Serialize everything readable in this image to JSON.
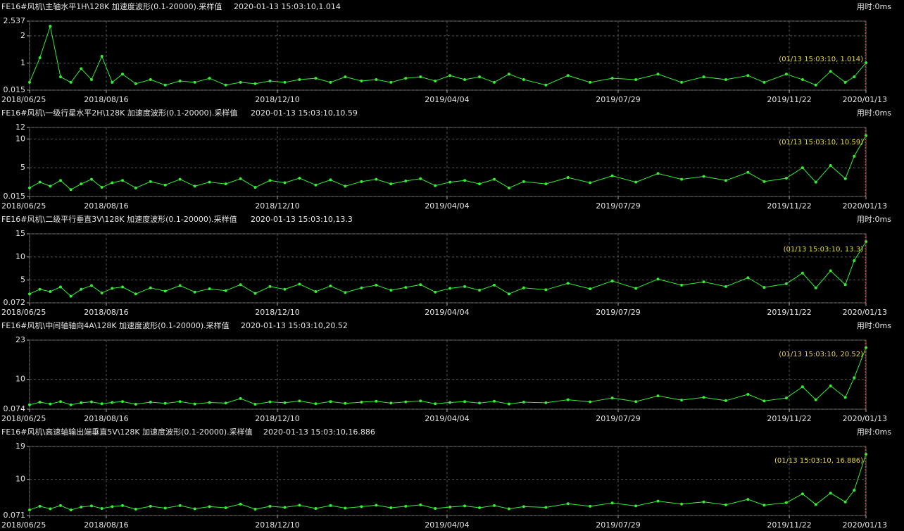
{
  "chart_data": [
    {
      "type": "line",
      "title": "FE16#风机\\主轴水平1H\\128K 加速度波形(0.1-20000).采样值",
      "subtitle": "2020-01-13 15:03:10,1.014",
      "elapsed": "用时:0ms",
      "annotation": "(01/13 15:03:10, 1.014)",
      "x": [
        "2018/06/25",
        "2018/07/02",
        "2018/07/09",
        "2018/07/16",
        "2018/07/23",
        "2018/07/30",
        "2018/08/06",
        "2018/08/13",
        "2018/08/20",
        "2018/08/27",
        "2018/09/05",
        "2018/09/15",
        "2018/09/25",
        "2018/10/05",
        "2018/10/15",
        "2018/10/25",
        "2018/11/05",
        "2018/11/15",
        "2018/11/25",
        "2018/12/05",
        "2018/12/15",
        "2018/12/25",
        "2019/01/05",
        "2019/01/15",
        "2019/01/25",
        "2019/02/05",
        "2019/02/15",
        "2019/02/25",
        "2019/03/07",
        "2019/03/17",
        "2019/03/27",
        "2019/04/06",
        "2019/04/16",
        "2019/04/26",
        "2019/05/06",
        "2019/05/16",
        "2019/05/26",
        "2019/06/10",
        "2019/06/25",
        "2019/07/10",
        "2019/07/25",
        "2019/08/10",
        "2019/08/25",
        "2019/09/10",
        "2019/09/25",
        "2019/10/10",
        "2019/10/25",
        "2019/11/05",
        "2019/11/20",
        "2019/12/01",
        "2019/12/10",
        "2019/12/20",
        "2019/12/30",
        "2020/01/05",
        "2020/01/13"
      ],
      "values": [
        0.3,
        1.2,
        2.35,
        0.5,
        0.3,
        0.8,
        0.4,
        1.25,
        0.3,
        0.6,
        0.25,
        0.4,
        0.2,
        0.35,
        0.3,
        0.45,
        0.2,
        0.3,
        0.25,
        0.35,
        0.3,
        0.4,
        0.45,
        0.3,
        0.5,
        0.35,
        0.4,
        0.3,
        0.45,
        0.5,
        0.35,
        0.55,
        0.4,
        0.5,
        0.3,
        0.6,
        0.4,
        0.2,
        0.55,
        0.3,
        0.45,
        0.4,
        0.6,
        0.3,
        0.5,
        0.4,
        0.55,
        0.3,
        0.6,
        0.4,
        0.2,
        0.7,
        0.3,
        0.5,
        1.014
      ],
      "color": "#33ee33",
      "xlim": [
        "2018/06/25",
        "2020/01/13"
      ],
      "xticks": [
        "2018/06/25",
        "2018/08/16",
        "2018/12/10",
        "2019/04/04",
        "2019/07/29",
        "2019/11/22",
        "2020/01/13"
      ],
      "ylim": [
        0.015,
        2.537
      ],
      "yticks": [
        0.015,
        1,
        2,
        2.537
      ],
      "grid": true
    },
    {
      "type": "line",
      "title": "FE16#风机\\一级行星水平2H\\128K 加速度波形(0.1-20000).采样值",
      "subtitle": "2020-01-13 15:03:10,10.59",
      "elapsed": "用时:0ms",
      "annotation": "(01/13 15:03:10, 10.59)",
      "x": [
        "2018/06/25",
        "2018/07/02",
        "2018/07/09",
        "2018/07/16",
        "2018/07/23",
        "2018/07/30",
        "2018/08/06",
        "2018/08/13",
        "2018/08/20",
        "2018/08/27",
        "2018/09/05",
        "2018/09/15",
        "2018/09/25",
        "2018/10/05",
        "2018/10/15",
        "2018/10/25",
        "2018/11/05",
        "2018/11/15",
        "2018/11/25",
        "2018/12/05",
        "2018/12/15",
        "2018/12/25",
        "2019/01/05",
        "2019/01/15",
        "2019/01/25",
        "2019/02/05",
        "2019/02/15",
        "2019/02/25",
        "2019/03/07",
        "2019/03/17",
        "2019/03/27",
        "2019/04/06",
        "2019/04/16",
        "2019/04/26",
        "2019/05/06",
        "2019/05/16",
        "2019/05/26",
        "2019/06/10",
        "2019/06/25",
        "2019/07/10",
        "2019/07/25",
        "2019/08/10",
        "2019/08/25",
        "2019/09/10",
        "2019/09/25",
        "2019/10/10",
        "2019/10/25",
        "2019/11/05",
        "2019/11/20",
        "2019/12/01",
        "2019/12/10",
        "2019/12/20",
        "2019/12/30",
        "2020/01/05",
        "2020/01/13"
      ],
      "values": [
        1.5,
        2.5,
        1.8,
        2.8,
        1.2,
        2.2,
        3,
        1.6,
        2.4,
        2.8,
        1.5,
        2.6,
        2,
        3,
        1.8,
        2.5,
        2.2,
        3.1,
        1.6,
        2.8,
        2.4,
        3.2,
        2,
        2.9,
        1.8,
        2.6,
        3,
        2.2,
        2.7,
        3.1,
        1.9,
        2.5,
        2.8,
        2.2,
        3,
        1.5,
        2.6,
        2.2,
        3.3,
        2.4,
        3.6,
        2.5,
        4,
        3,
        3.5,
        2.8,
        4.2,
        2.6,
        3.2,
        5,
        2.5,
        5.4,
        3.1,
        7,
        10.59
      ],
      "color": "#33ee33",
      "xlim": [
        "2018/06/25",
        "2020/01/13"
      ],
      "xticks": [
        "2018/06/25",
        "2018/08/16",
        "2018/12/10",
        "2019/04/04",
        "2019/07/29",
        "2019/11/22",
        "2020/01/13"
      ],
      "ylim": [
        0.015,
        12
      ],
      "yticks": [
        0.015,
        5,
        10,
        12
      ],
      "grid": true
    },
    {
      "type": "line",
      "title": "FE16#风机\\二级平行垂直3V\\128K 加速度波形(0.1-20000).采样值",
      "subtitle": "2020-01-13 15:03:10,13.3",
      "elapsed": "用时:0ms",
      "annotation": "(01/13 15:03:10, 13.3)",
      "x": [
        "2018/06/25",
        "2018/07/02",
        "2018/07/09",
        "2018/07/16",
        "2018/07/23",
        "2018/07/30",
        "2018/08/06",
        "2018/08/13",
        "2018/08/20",
        "2018/08/27",
        "2018/09/05",
        "2018/09/15",
        "2018/09/25",
        "2018/10/05",
        "2018/10/15",
        "2018/10/25",
        "2018/11/05",
        "2018/11/15",
        "2018/11/25",
        "2018/12/05",
        "2018/12/15",
        "2018/12/25",
        "2019/01/05",
        "2019/01/15",
        "2019/01/25",
        "2019/02/05",
        "2019/02/15",
        "2019/02/25",
        "2019/03/07",
        "2019/03/17",
        "2019/03/27",
        "2019/04/06",
        "2019/04/16",
        "2019/04/26",
        "2019/05/06",
        "2019/05/16",
        "2019/05/26",
        "2019/06/10",
        "2019/06/25",
        "2019/07/10",
        "2019/07/25",
        "2019/08/10",
        "2019/08/25",
        "2019/09/10",
        "2019/09/25",
        "2019/10/10",
        "2019/10/25",
        "2019/11/05",
        "2019/11/20",
        "2019/12/01",
        "2019/12/10",
        "2019/12/20",
        "2019/12/30",
        "2020/01/05",
        "2020/01/13"
      ],
      "values": [
        2,
        3,
        2.5,
        3.5,
        1.5,
        3,
        3.8,
        2.2,
        3.2,
        3.5,
        2,
        3.3,
        2.6,
        3.8,
        2.4,
        3.1,
        2.7,
        4,
        2.1,
        3.6,
        3,
        4.1,
        2.5,
        3.7,
        2.3,
        3.3,
        3.9,
        2.8,
        3.4,
        4,
        2.4,
        3.2,
        3.6,
        2.8,
        3.9,
        2,
        3.3,
        2.9,
        4.3,
        3.1,
        4.8,
        3.2,
        5.2,
        3.9,
        4.6,
        3.6,
        5.5,
        3.4,
        4.2,
        6.5,
        3.3,
        7,
        4,
        9.2,
        13.3
      ],
      "color": "#33ee33",
      "xlim": [
        "2018/06/25",
        "2020/01/13"
      ],
      "xticks": [
        "2018/06/25",
        "2018/08/16",
        "2018/12/10",
        "2019/04/04",
        "2019/07/29",
        "2019/11/22",
        "2020/01/13"
      ],
      "ylim": [
        0.072,
        15
      ],
      "yticks": [
        0.072,
        5,
        10,
        15
      ],
      "grid": true
    },
    {
      "type": "line",
      "title": "FE16#风机\\中间轴轴向4A\\128K 加速度波形(0.1-20000).采样值",
      "subtitle": "2020-01-13 15:03:10,20.52",
      "elapsed": "用时:0ms",
      "annotation": "(01/13 15:03:10, 20.52)",
      "x": [
        "2018/06/25",
        "2018/07/02",
        "2018/07/09",
        "2018/07/16",
        "2018/07/23",
        "2018/07/30",
        "2018/08/06",
        "2018/08/13",
        "2018/08/20",
        "2018/08/27",
        "2018/09/05",
        "2018/09/15",
        "2018/09/25",
        "2018/10/05",
        "2018/10/15",
        "2018/10/25",
        "2018/11/05",
        "2018/11/15",
        "2018/11/25",
        "2018/12/05",
        "2018/12/15",
        "2018/12/25",
        "2019/01/05",
        "2019/01/15",
        "2019/01/25",
        "2019/02/05",
        "2019/02/15",
        "2019/02/25",
        "2019/03/07",
        "2019/03/17",
        "2019/03/27",
        "2019/04/06",
        "2019/04/16",
        "2019/04/26",
        "2019/05/06",
        "2019/05/16",
        "2019/05/26",
        "2019/06/10",
        "2019/06/25",
        "2019/07/10",
        "2019/07/25",
        "2019/08/10",
        "2019/08/25",
        "2019/09/10",
        "2019/09/25",
        "2019/10/10",
        "2019/10/25",
        "2019/11/05",
        "2019/11/20",
        "2019/12/01",
        "2019/12/10",
        "2019/12/20",
        "2019/12/30",
        "2020/01/05",
        "2020/01/13"
      ],
      "values": [
        1.5,
        2.4,
        1.8,
        2.6,
        1.5,
        2.2,
        2.5,
        1.9,
        2.3,
        2.6,
        1.7,
        2.4,
        2,
        2.6,
        1.8,
        2.3,
        2.1,
        3.6,
        1.7,
        2.5,
        2.2,
        2.8,
        1.9,
        2.6,
        2,
        2.4,
        2.7,
        2.1,
        2.5,
        2.8,
        1.9,
        2.3,
        2.6,
        2.1,
        2.7,
        1.8,
        2.4,
        2.2,
        3.2,
        2.5,
        3.8,
        2.6,
        4.5,
        3.1,
        4,
        2.9,
        5,
        2.8,
        3.8,
        7.5,
        3.2,
        7.8,
        4,
        10.5,
        20.52
      ],
      "color": "#33ee33",
      "xlim": [
        "2018/06/25",
        "2020/01/13"
      ],
      "xticks": [
        "2018/06/25",
        "2018/08/16",
        "2018/12/10",
        "2019/04/04",
        "2019/07/29",
        "2019/11/22",
        "2020/01/13"
      ],
      "ylim": [
        0.074,
        23
      ],
      "yticks": [
        0.074,
        10,
        23
      ],
      "grid": true
    },
    {
      "type": "line",
      "title": "FE16#风机\\高速轴输出端垂直5V\\128K 加速度波形(0.1-20000).采样值",
      "subtitle": "2020-01-13 15:03:10,16.886",
      "elapsed": "用时:0ms",
      "annotation": "(01/13 15:03:10, 16.886)",
      "x": [
        "2018/06/25",
        "2018/07/02",
        "2018/07/09",
        "2018/07/16",
        "2018/07/23",
        "2018/07/30",
        "2018/08/06",
        "2018/08/13",
        "2018/08/20",
        "2018/08/27",
        "2018/09/05",
        "2018/09/15",
        "2018/09/25",
        "2018/10/05",
        "2018/10/15",
        "2018/10/25",
        "2018/11/05",
        "2018/11/15",
        "2018/11/25",
        "2018/12/05",
        "2018/12/15",
        "2018/12/25",
        "2019/01/05",
        "2019/01/15",
        "2019/01/25",
        "2019/02/05",
        "2019/02/15",
        "2019/02/25",
        "2019/03/07",
        "2019/03/17",
        "2019/03/27",
        "2019/04/06",
        "2019/04/16",
        "2019/04/26",
        "2019/05/06",
        "2019/05/16",
        "2019/05/26",
        "2019/06/10",
        "2019/06/25",
        "2019/07/10",
        "2019/07/25",
        "2019/08/10",
        "2019/08/25",
        "2019/09/10",
        "2019/09/25",
        "2019/10/10",
        "2019/10/25",
        "2019/11/05",
        "2019/11/20",
        "2019/12/01",
        "2019/12/10",
        "2019/12/20",
        "2019/12/30",
        "2020/01/05",
        "2020/01/13"
      ],
      "values": [
        1.6,
        2.6,
        1.9,
        2.8,
        1.6,
        2.4,
        2.7,
        2,
        2.5,
        2.8,
        1.8,
        2.6,
        2.1,
        2.8,
        1.9,
        2.5,
        2.2,
        3.2,
        1.8,
        2.6,
        2.3,
        2.9,
        2,
        2.8,
        2.1,
        2.5,
        2.9,
        2.2,
        2.6,
        3,
        2,
        2.4,
        2.7,
        2.2,
        2.8,
        1.9,
        2.5,
        2.3,
        3.3,
        2.6,
        3.5,
        2.7,
        4,
        3.2,
        3.8,
        3,
        4.5,
        2.9,
        3.6,
        6,
        3.1,
        6.2,
        3.8,
        7,
        16.886
      ],
      "color": "#33ee33",
      "xlim": [
        "2018/06/25",
        "2020/01/13"
      ],
      "xticks": [
        "2018/06/25",
        "2018/08/16",
        "2018/12/10",
        "2019/04/04",
        "2019/07/29",
        "2019/11/22",
        "2020/01/13"
      ],
      "ylim": [
        0.071,
        19
      ],
      "yticks": [
        0.071,
        10,
        19
      ],
      "grid": true
    }
  ]
}
